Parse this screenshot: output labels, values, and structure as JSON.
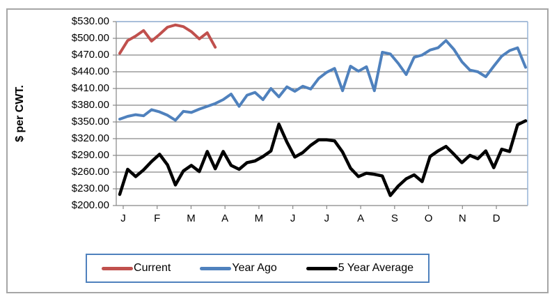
{
  "colors": {
    "grid": "#878787",
    "axis": "#878787",
    "plot_border": "#95b3d7",
    "frame_border": "#a6a6a6",
    "legend_border": "#4f81bd"
  },
  "chart_data": {
    "type": "line",
    "title": "",
    "xlabel": "",
    "ylabel": "$ per CWT.",
    "x_tick_labels": [
      "J",
      "F",
      "M",
      "A",
      "M",
      "J",
      "J",
      "A",
      "S",
      "O",
      "N",
      "D"
    ],
    "y_tick_labels": [
      "$530.00",
      "$500.00",
      "$470.00",
      "$440.00",
      "$410.00",
      "$380.00",
      "$350.00",
      "$320.00",
      "$290.00",
      "$260.00",
      "$230.00",
      "$200.00"
    ],
    "ylim": [
      200,
      530
    ],
    "y_tick_step": 30,
    "x_unit": "weekly points, Jan through Dec",
    "grid": true,
    "legend_position": "bottom-center",
    "series": [
      {
        "name": "Current",
        "color": "#c0504d",
        "stroke_width": 4,
        "values": [
          473,
          496,
          504,
          514,
          495,
          507,
          520,
          524,
          521,
          512,
          499,
          510,
          484
        ]
      },
      {
        "name": "Year Ago",
        "color": "#4f81bd",
        "stroke_width": 4,
        "values": [
          355,
          360,
          363,
          361,
          372,
          368,
          362,
          353,
          369,
          367,
          373,
          378,
          383,
          390,
          400,
          378,
          398,
          403,
          390,
          410,
          395,
          413,
          405,
          414,
          409,
          428,
          439,
          446,
          406,
          450,
          441,
          449,
          406,
          475,
          472,
          455,
          435,
          466,
          470,
          479,
          483,
          496,
          480,
          458,
          443,
          440,
          431,
          450,
          468,
          478,
          483,
          448
        ]
      },
      {
        "name": "5 Year Average",
        "color": "#000000",
        "stroke_width": 4.5,
        "values": [
          220,
          265,
          252,
          264,
          279,
          292,
          273,
          237,
          262,
          272,
          261,
          297,
          266,
          297,
          272,
          265,
          277,
          280,
          288,
          298,
          346,
          314,
          287,
          295,
          308,
          318,
          318,
          316,
          296,
          267,
          252,
          258,
          256,
          253,
          218,
          235,
          248,
          255,
          243,
          288,
          298,
          306,
          292,
          277,
          290,
          284,
          298,
          268,
          301,
          297,
          345,
          352
        ]
      }
    ]
  }
}
